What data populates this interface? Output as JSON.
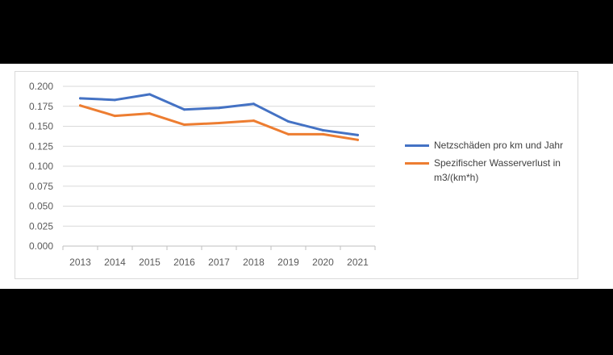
{
  "chart_data": {
    "type": "line",
    "categories": [
      "2013",
      "2014",
      "2015",
      "2016",
      "2017",
      "2018",
      "2019",
      "2020",
      "2021"
    ],
    "series": [
      {
        "name": "Netzschäden pro km und Jahr",
        "color": "#4472c4",
        "values": [
          0.185,
          0.183,
          0.19,
          0.171,
          0.173,
          0.178,
          0.156,
          0.145,
          0.139
        ]
      },
      {
        "name": "Spezifischer Wasserverlust in m3/(km*h)",
        "color": "#ed7d31",
        "values": [
          0.176,
          0.163,
          0.166,
          0.152,
          0.154,
          0.157,
          0.14,
          0.14,
          0.133
        ]
      }
    ],
    "y_ticks": [
      "0.000",
      "0.025",
      "0.050",
      "0.075",
      "0.100",
      "0.125",
      "0.150",
      "0.175",
      "0.200"
    ],
    "ylim": [
      0,
      0.2
    ],
    "grid": true,
    "legend_position": "right"
  }
}
